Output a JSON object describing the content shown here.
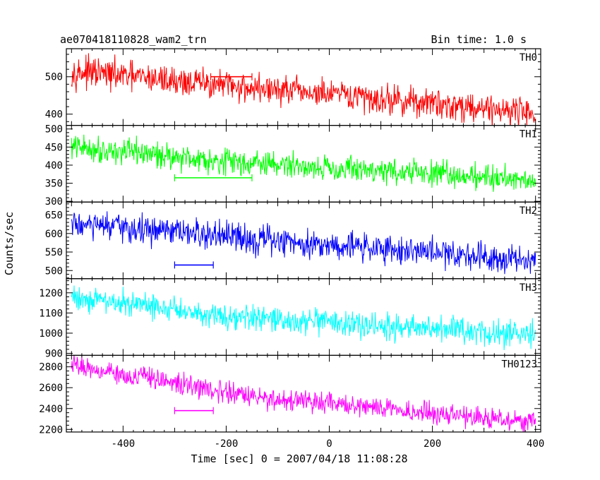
{
  "chart_data": {
    "type": "line",
    "header": {
      "left": "ae070418110828_wam2_trn",
      "right": "Bin time: 1.0 s"
    },
    "xlabel": "Time [sec] 0 = 2007/04/18 11:08:28",
    "ylabel": "Counts/sec",
    "xlim": [
      -510,
      410
    ],
    "xticks": [
      -400,
      -200,
      0,
      200,
      400
    ],
    "grid": false,
    "series": [
      {
        "name": "TH0",
        "color": "#ff0000",
        "ylim": [
          370,
          575
        ],
        "yticks": [
          400,
          500
        ],
        "trend": [
          [
            -500,
            515
          ],
          [
            -150,
            470
          ],
          [
            400,
            405
          ]
        ],
        "noise": 28,
        "flat_segment": {
          "x": [
            -230,
            -150
          ],
          "y": 500
        }
      },
      {
        "name": "TH1",
        "color": "#00ff00",
        "ylim": [
          298,
          510
        ],
        "yticks": [
          300,
          350,
          400,
          450,
          500
        ],
        "trend": [
          [
            -500,
            450
          ],
          [
            -150,
            405
          ],
          [
            400,
            360
          ]
        ],
        "noise": 25,
        "flat_segment": {
          "x": [
            -300,
            -150
          ],
          "y": 365
        }
      },
      {
        "name": "TH2",
        "color": "#0000ff",
        "ylim": [
          478,
          685
        ],
        "yticks": [
          500,
          550,
          600,
          650
        ],
        "trend": [
          [
            -500,
            625
          ],
          [
            -150,
            585
          ],
          [
            400,
            530
          ]
        ],
        "noise": 28,
        "flat_segment": {
          "x": [
            -300,
            -225
          ],
          "y": 515
        }
      },
      {
        "name": "TH3",
        "color": "#00ffff",
        "ylim": [
          890,
          1270
        ],
        "yticks": [
          900,
          1000,
          1100,
          1200
        ],
        "trend": [
          [
            -500,
            1180
          ],
          [
            -150,
            1070
          ],
          [
            400,
            990
          ]
        ],
        "noise": 45,
        "flat_segment": null
      },
      {
        "name": "TH0123",
        "color": "#ff00ff",
        "ylim": [
          2175,
          2910
        ],
        "yticks": [
          2200,
          2400,
          2600,
          2800
        ],
        "trend": [
          [
            -500,
            2820
          ],
          [
            -150,
            2510
          ],
          [
            400,
            2270
          ]
        ],
        "noise": 70,
        "flat_segment": {
          "x": [
            -300,
            -225
          ],
          "y": 2380
        }
      }
    ]
  }
}
